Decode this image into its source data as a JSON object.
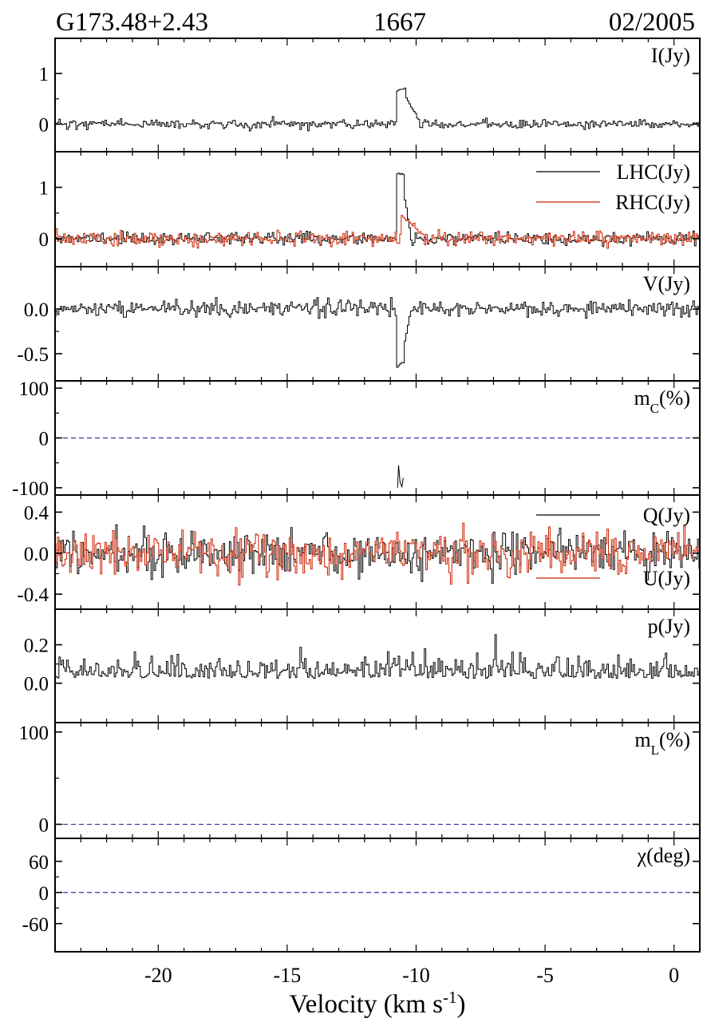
{
  "header": {
    "source": "G173.48+2.43",
    "frequency": "1667",
    "epoch": "02/2005"
  },
  "colors": {
    "black_trace": "#000000",
    "red_trace": "#cc2200",
    "reference_line": "#3333aa"
  },
  "chart_data": {
    "type": "line",
    "style": "step",
    "xlabel": "Velocity (km s",
    "xlabel_sup": "-1",
    "xlabel_end": ")",
    "xlim": [
      -24.0,
      1.0
    ],
    "x_ticks": [
      -20,
      -15,
      -10,
      -5,
      0
    ],
    "x_tick_labels": [
      "-20",
      "-15",
      "-10",
      "-5",
      "0"
    ],
    "panels": [
      {
        "id": "I",
        "label": "I(Jy)",
        "ylim": [
          -0.45,
          1.6
        ],
        "y_ticks": [
          0,
          1
        ],
        "y_tick_labels": [
          "0",
          "1"
        ],
        "series": [
          {
            "color": "black",
            "noise": 0.045,
            "seed": 11,
            "features": [
              {
                "type": "box",
                "from": -10.75,
                "to": -10.4,
                "value": 0.68
              },
              {
                "type": "decay",
                "from": -10.4,
                "to": -9.85,
                "start": 0.55,
                "end": 0.05
              }
            ]
          }
        ]
      },
      {
        "id": "LHC_RHC",
        "ylim": [
          -0.45,
          1.6
        ],
        "y_ticks": [
          0,
          1
        ],
        "y_tick_labels": [
          "0",
          "1"
        ],
        "series": [
          {
            "name": "LHC(Jy)",
            "color": "black",
            "noise": 0.06,
            "seed": 23,
            "features": [
              {
                "type": "box",
                "from": -10.75,
                "to": -10.45,
                "value": 1.25
              },
              {
                "type": "decay",
                "from": -10.45,
                "to": -10.2,
                "start": 0.8,
                "end": 0.1
              }
            ]
          },
          {
            "name": "RHC(Jy)",
            "color": "red",
            "noise": 0.07,
            "seed": 37,
            "features": [
              {
                "type": "decay",
                "from": -10.6,
                "to": -9.7,
                "start": 0.48,
                "end": 0.05
              }
            ]
          }
        ]
      },
      {
        "id": "V",
        "label": "V(Jy)",
        "ylim": [
          -0.75,
          0.42
        ],
        "y_ticks": [
          0.0,
          -0.5
        ],
        "y_tick_labels": [
          "0.0",
          "-0.5"
        ],
        "series": [
          {
            "color": "black",
            "noise": 0.045,
            "seed": 41,
            "features": [
              {
                "type": "box",
                "from": -10.75,
                "to": -10.45,
                "value": -0.63
              },
              {
                "type": "decay",
                "from": -10.45,
                "to": -10.2,
                "start": -0.4,
                "end": 0.0
              }
            ]
          }
        ]
      },
      {
        "id": "mc",
        "label": "m",
        "label_sub": "C",
        "label_end": "(%)",
        "ylim": [
          -105,
          105
        ],
        "y_ticks": [
          100,
          0,
          -100
        ],
        "y_tick_labels": [
          "100",
          "0",
          "-100"
        ],
        "reference_line": 0,
        "series": [
          {
            "color": "black",
            "points": [
              [
                -10.72,
                -100
              ],
              [
                -10.68,
                -55
              ],
              [
                -10.62,
                -90
              ],
              [
                -10.55,
                -98
              ],
              [
                -10.5,
                -80
              ]
            ]
          }
        ]
      },
      {
        "id": "QU",
        "ylim": [
          -0.5,
          0.52
        ],
        "y_ticks": [
          0.4,
          0.0,
          -0.4
        ],
        "y_tick_labels": [
          "0.4",
          "0.0",
          "-0.4"
        ],
        "series": [
          {
            "name": "Q(Jy)",
            "color": "black",
            "noise": 0.1,
            "seed": 53,
            "features": []
          },
          {
            "name": "U(Jy)",
            "color": "red",
            "noise": 0.11,
            "seed": 67,
            "features": []
          }
        ]
      },
      {
        "id": "p",
        "label": "p(Jy)",
        "ylim": [
          -0.18,
          0.36
        ],
        "y_ticks": [
          0.2,
          0.0
        ],
        "y_tick_labels": [
          "0.2",
          "0.0"
        ],
        "series": [
          {
            "color": "black",
            "noise": 0.055,
            "offset": 0.045,
            "positive": true,
            "seed": 79,
            "features": []
          }
        ]
      },
      {
        "id": "mL",
        "label": "m",
        "label_sub": "L",
        "label_end": "(%)",
        "ylim": [
          -10,
          105
        ],
        "y_ticks": [
          100,
          0
        ],
        "y_tick_labels": [
          "100",
          "0"
        ],
        "reference_line": 0,
        "series": []
      },
      {
        "id": "chi",
        "label": "χ(deg)",
        "ylim": [
          -105,
          95
        ],
        "y_ticks": [
          60,
          0,
          -60
        ],
        "y_tick_labels": [
          "60",
          "0",
          "-60"
        ],
        "reference_line": 0,
        "series": []
      }
    ]
  }
}
